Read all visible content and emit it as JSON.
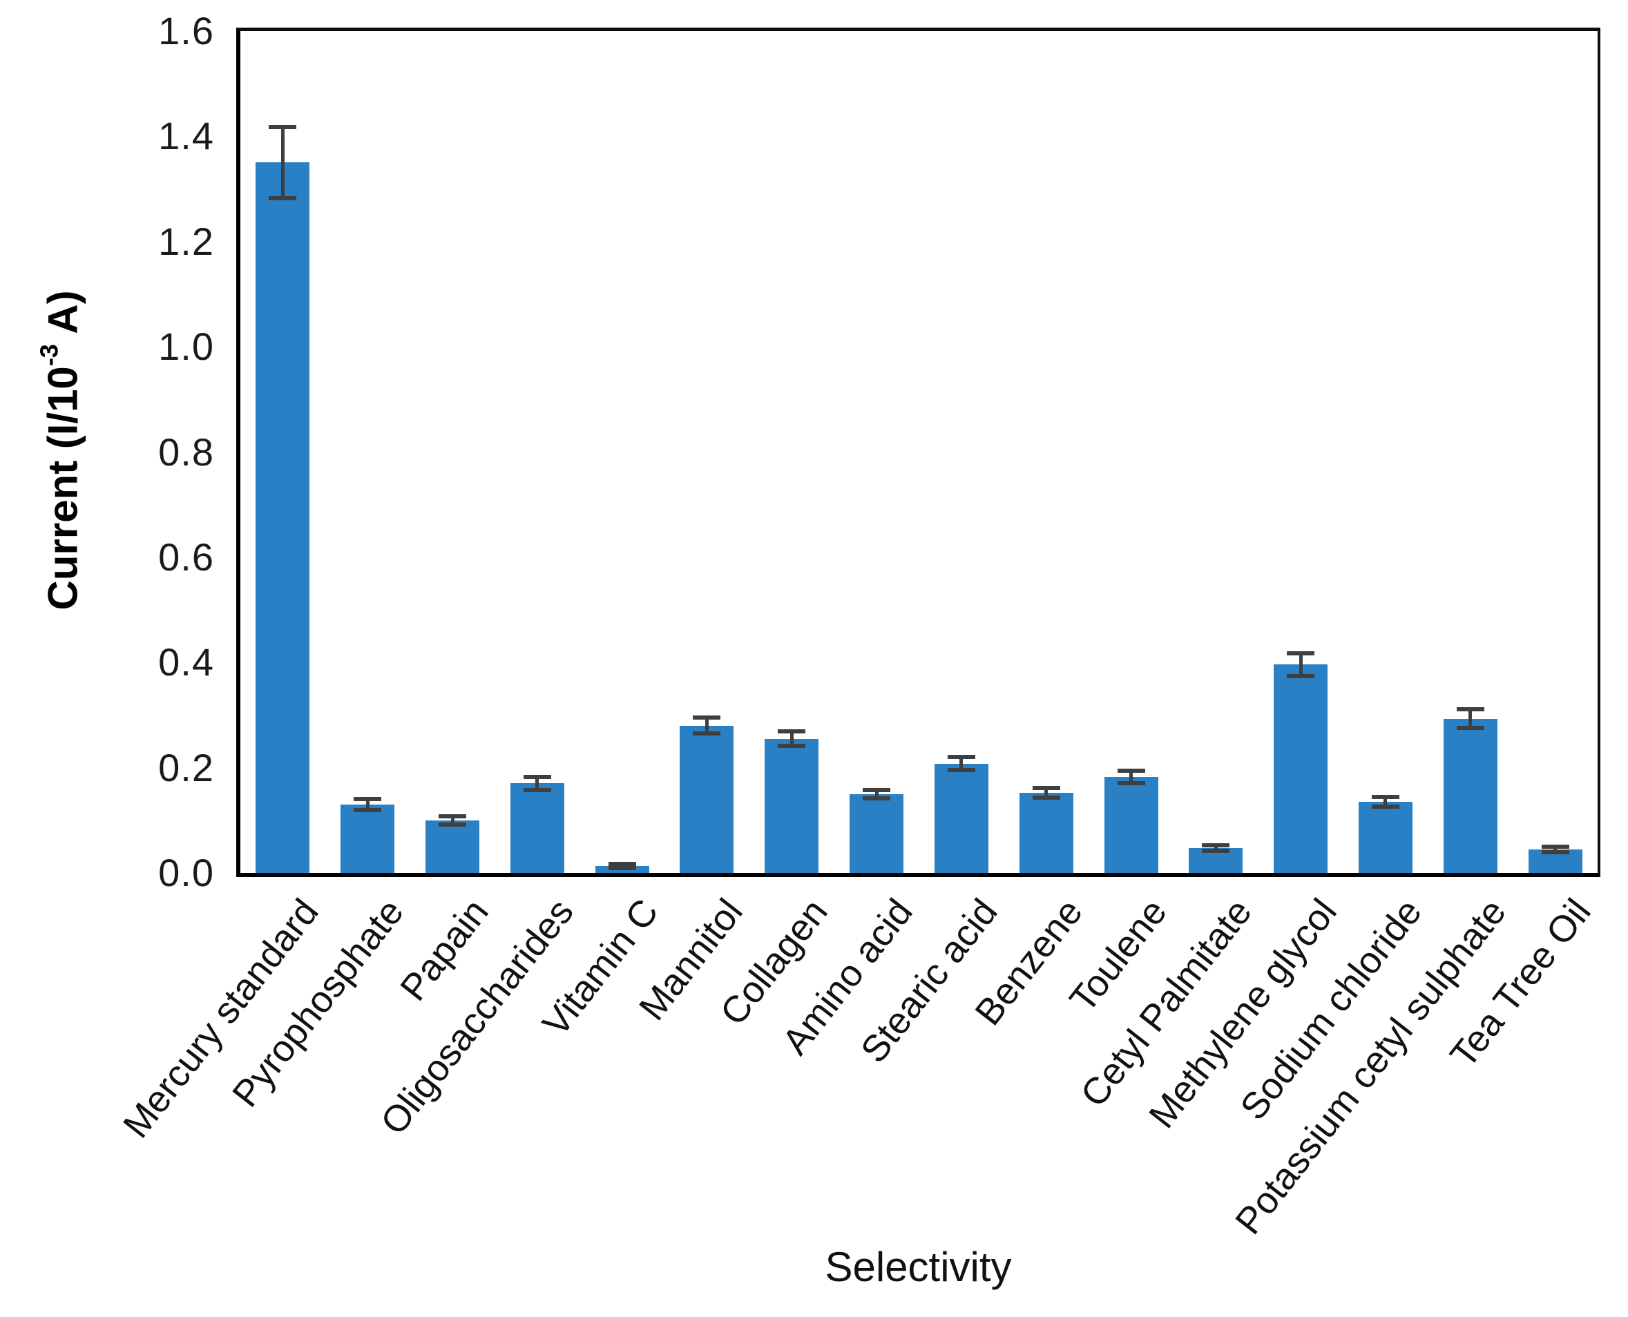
{
  "chart_data": {
    "type": "bar",
    "title": "",
    "xlabel": "Selectivity",
    "ylabel": "Current (I/10⁻³ A)",
    "ylabel_parts": {
      "prefix": "Current (I/10",
      "superscript": "-3",
      "suffix": " A)"
    },
    "categories": [
      "Mercury standard",
      "Pyrophosphate",
      "Papain",
      "Oligosaccharides",
      "Vitamin C",
      "Mannitol",
      "Collagen",
      "Amino acid",
      "Stearic acid",
      "Benzene",
      "Toulene",
      "Cetyl Palmitate",
      "Methylene glycol",
      "Sodium chloride",
      "Potassium cetyl sulphate",
      "Tea Tree Oil"
    ],
    "values": [
      1.35,
      0.13,
      0.1,
      0.17,
      0.013,
      0.28,
      0.255,
      0.15,
      0.208,
      0.152,
      0.182,
      0.047,
      0.396,
      0.135,
      0.293,
      0.045
    ],
    "errors": [
      0.067,
      0.011,
      0.008,
      0.013,
      0.004,
      0.015,
      0.014,
      0.008,
      0.013,
      0.009,
      0.012,
      0.005,
      0.022,
      0.009,
      0.018,
      0.005
    ],
    "ylim": [
      0,
      1.6
    ],
    "ytick_labels": [
      "0.0",
      "0.2",
      "0.4",
      "0.6",
      "0.8",
      "1.0",
      "1.2",
      "1.4",
      "1.6"
    ],
    "grid": false,
    "legend": "none",
    "error_bars": true,
    "bar_color": "#2980c4",
    "error_bar_color": "#3f3f3f",
    "axis_color": "#000000"
  }
}
